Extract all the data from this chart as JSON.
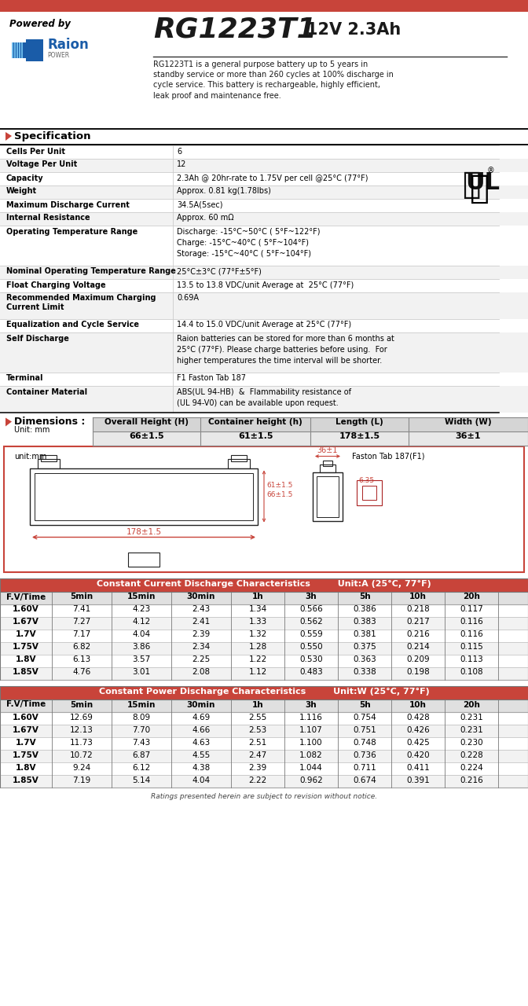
{
  "title_model": "RG1223T1",
  "title_spec": "12V 2.3Ah",
  "powered_by": "Powered by",
  "description": "RG1223T1 is a general purpose battery up to 5 years in\nstandby service or more than 260 cycles at 100% discharge in\ncycle service. This battery is rechargeable, highly efficient,\nleak proof and maintenance free.",
  "spec_title": "Specification",
  "spec_rows": [
    [
      "Cells Per Unit",
      "6"
    ],
    [
      "Voltage Per Unit",
      "12"
    ],
    [
      "Capacity",
      "2.3Ah @ 20hr-rate to 1.75V per cell @25°C (77°F)"
    ],
    [
      "Weight",
      "Approx. 0.81 kg(1.78lbs)"
    ],
    [
      "Maximum Discharge Current",
      "34.5A(5sec)"
    ],
    [
      "Internal Resistance",
      "Approx. 60 mΩ"
    ],
    [
      "Operating Temperature Range",
      "Discharge: -15°C~50°C ( 5°F~122°F)\nCharge: -15°C~40°C ( 5°F~104°F)\nStorage: -15°C~40°C ( 5°F~104°F)"
    ],
    [
      "Nominal Operating Temperature Range",
      "25°C±3°C (77°F±5°F)"
    ],
    [
      "Float Charging Voltage",
      "13.5 to 13.8 VDC/unit Average at  25°C (77°F)"
    ],
    [
      "Recommended Maximum Charging\nCurrent Limit",
      "0.69A"
    ],
    [
      "Equalization and Cycle Service",
      "14.4 to 15.0 VDC/unit Average at 25°C (77°F)"
    ],
    [
      "Self Discharge",
      "Raion batteries can be stored for more than 6 months at\n25°C (77°F). Please charge batteries before using.  For\nhigher temperatures the time interval will be shorter."
    ],
    [
      "Terminal",
      "F1 Faston Tab 187"
    ],
    [
      "Container Material",
      "ABS(UL 94-HB)  &  Flammability resistance of\n(UL 94-V0) can be available upon request."
    ]
  ],
  "spec_row_heights": [
    17,
    17,
    17,
    17,
    17,
    17,
    51,
    17,
    17,
    34,
    17,
    51,
    17,
    34
  ],
  "dim_title": "Dimensions :",
  "dim_unit": "Unit: mm",
  "dim_headers": [
    "Overall Height (H)",
    "Container height (h)",
    "Length (L)",
    "Width (W)"
  ],
  "dim_values": [
    "66±1.5",
    "61±1.5",
    "178±1.5",
    "36±1"
  ],
  "cc_title": "Constant Current Discharge Characteristics",
  "cc_unit": "Unit:A (25°C, 77°F)",
  "cc_headers": [
    "F.V/Time",
    "5min",
    "15min",
    "30min",
    "1h",
    "3h",
    "5h",
    "10h",
    "20h"
  ],
  "cc_rows": [
    [
      "1.60V",
      "7.41",
      "4.23",
      "2.43",
      "1.34",
      "0.566",
      "0.386",
      "0.218",
      "0.117"
    ],
    [
      "1.67V",
      "7.27",
      "4.12",
      "2.41",
      "1.33",
      "0.562",
      "0.383",
      "0.217",
      "0.116"
    ],
    [
      "1.7V",
      "7.17",
      "4.04",
      "2.39",
      "1.32",
      "0.559",
      "0.381",
      "0.216",
      "0.116"
    ],
    [
      "1.75V",
      "6.82",
      "3.86",
      "2.34",
      "1.28",
      "0.550",
      "0.375",
      "0.214",
      "0.115"
    ],
    [
      "1.8V",
      "6.13",
      "3.57",
      "2.25",
      "1.22",
      "0.530",
      "0.363",
      "0.209",
      "0.113"
    ],
    [
      "1.85V",
      "4.76",
      "3.01",
      "2.08",
      "1.12",
      "0.483",
      "0.338",
      "0.198",
      "0.108"
    ]
  ],
  "cp_title": "Constant Power Discharge Characteristics",
  "cp_unit": "Unit:W (25°C, 77°F)",
  "cp_headers": [
    "F.V/Time",
    "5min",
    "15min",
    "30min",
    "1h",
    "3h",
    "5h",
    "10h",
    "20h"
  ],
  "cp_rows": [
    [
      "1.60V",
      "12.69",
      "8.09",
      "4.69",
      "2.55",
      "1.116",
      "0.754",
      "0.428",
      "0.231"
    ],
    [
      "1.67V",
      "12.13",
      "7.70",
      "4.66",
      "2.53",
      "1.107",
      "0.751",
      "0.426",
      "0.231"
    ],
    [
      "1.7V",
      "11.73",
      "7.43",
      "4.63",
      "2.51",
      "1.100",
      "0.748",
      "0.425",
      "0.230"
    ],
    [
      "1.75V",
      "10.72",
      "6.87",
      "4.55",
      "2.47",
      "1.082",
      "0.736",
      "0.420",
      "0.228"
    ],
    [
      "1.8V",
      "9.24",
      "6.12",
      "4.38",
      "2.39",
      "1.044",
      "0.711",
      "0.411",
      "0.224"
    ],
    [
      "1.85V",
      "7.19",
      "5.14",
      "4.04",
      "2.22",
      "0.962",
      "0.674",
      "0.391",
      "0.216"
    ]
  ],
  "footer": "Ratings presented herein are subject to revision without notice.",
  "red_color": "#C8443A",
  "table_header_bg": "#C8443A",
  "dim_header_bg": "#D5D5D5",
  "dim_val_bg": "#E8E8E8",
  "light_gray": "#F2F2F2",
  "medium_gray": "#E0E0E0",
  "spec_divider": "#CCCCCC",
  "dark_line": "#1A1A1A"
}
